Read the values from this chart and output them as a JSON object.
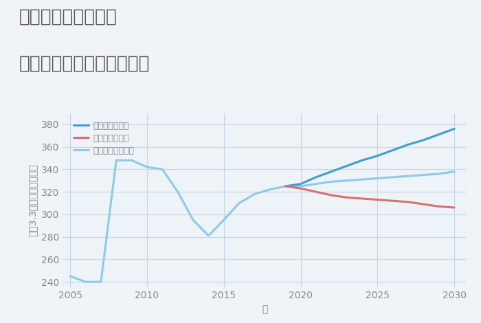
{
  "title_line1": "東京都板橋区舟渡の",
  "title_line2": "中古マンションの価格推移",
  "xlabel": "年",
  "ylabel": "坪（3.3㎡）単価（万円）",
  "background_color": "#f0f4f8",
  "plot_bg_color": "#eef3f8",
  "ylim": [
    235,
    390
  ],
  "yticks": [
    240,
    260,
    280,
    300,
    320,
    340,
    360,
    380
  ],
  "xlim": [
    2004.5,
    2030.8
  ],
  "xticks": [
    2005,
    2010,
    2015,
    2020,
    2025,
    2030
  ],
  "grid_color": "#c5d5e5",
  "normal_scenario": {
    "label": "ノーマルシナリオ",
    "color": "#8ecae6",
    "x": [
      2005,
      2006,
      2007,
      2008,
      2009,
      2010,
      2011,
      2012,
      2013,
      2014,
      2015,
      2016,
      2017,
      2018,
      2019,
      2020,
      2021,
      2022,
      2023,
      2024,
      2025,
      2026,
      2027,
      2028,
      2029,
      2030
    ],
    "y": [
      245,
      240,
      240,
      348,
      348,
      342,
      340,
      320,
      295,
      281,
      295,
      310,
      318,
      322,
      325,
      325,
      327,
      329,
      330,
      331,
      332,
      333,
      334,
      335,
      336,
      338
    ]
  },
  "good_scenario": {
    "label": "グッドシナリオ",
    "color": "#3aa0d0",
    "x": [
      2019,
      2020,
      2021,
      2022,
      2023,
      2024,
      2025,
      2026,
      2027,
      2028,
      2029,
      2030
    ],
    "y": [
      325,
      327,
      333,
      338,
      343,
      348,
      352,
      357,
      362,
      366,
      371,
      376
    ]
  },
  "bad_scenario": {
    "label": "バッドシナリオ",
    "color": "#d97070",
    "x": [
      2019,
      2020,
      2021,
      2022,
      2023,
      2024,
      2025,
      2026,
      2027,
      2028,
      2029,
      2030
    ],
    "y": [
      325,
      323,
      320,
      317,
      315,
      314,
      313,
      312,
      311,
      309,
      307,
      306
    ]
  },
  "title_color": "#555555",
  "axis_color": "#888888",
  "title_fontsize": 19,
  "label_fontsize": 10,
  "tick_fontsize": 10,
  "line_width": 2.2
}
